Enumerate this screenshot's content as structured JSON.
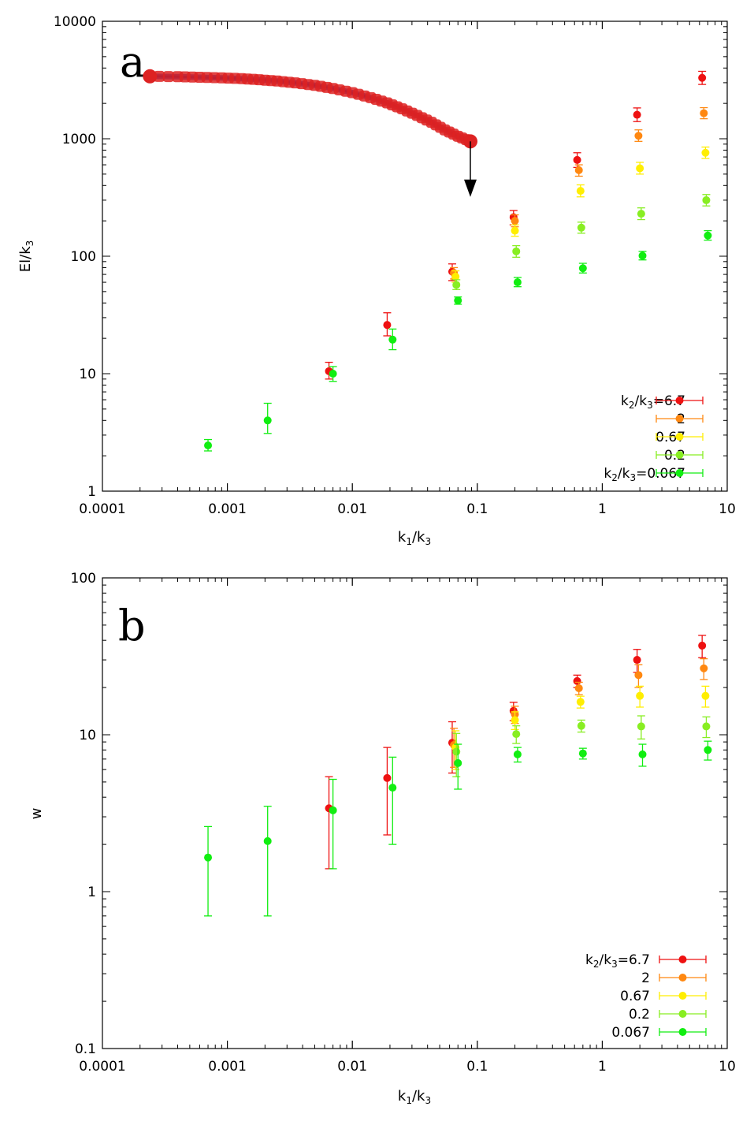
{
  "colors": {
    "k2_6.7": "#ee1111",
    "k2_2": "#ff8811",
    "k2_0.67": "#ffee00",
    "k2_0.2": "#88ee22",
    "k2_0.067": "#11ee11",
    "curve_dark": "#1a1a8a",
    "curve_mid": "#2255cc",
    "curve_marker": "#dd2222"
  },
  "chart_data": [
    {
      "panel": "a",
      "type": "scatter",
      "title": "",
      "xlabel": "k1/k3",
      "ylabel": "El/k3",
      "xscale": "log",
      "yscale": "log",
      "xlim": [
        0.0001,
        10
      ],
      "ylim": [
        1,
        10000
      ],
      "x_ticks": [
        {
          "value": 0.0001,
          "label": "0.0001"
        },
        {
          "value": 0.001,
          "label": "0.001"
        },
        {
          "value": 0.01,
          "label": "0.01"
        },
        {
          "value": 0.1,
          "label": "0.1"
        },
        {
          "value": 1,
          "label": "1"
        },
        {
          "value": 10,
          "label": "10"
        }
      ],
      "y_ticks": [
        {
          "value": 1,
          "label": "1"
        },
        {
          "value": 10,
          "label": "10"
        },
        {
          "value": 100,
          "label": "100"
        },
        {
          "value": 1000,
          "label": "1000"
        },
        {
          "value": 10000,
          "label": "10000"
        }
      ],
      "legend_placement": "bottom-right",
      "series": [
        {
          "name": "k2/k3=6.7",
          "legend_main": "k",
          "legend_sub1": "2",
          "legend_mid": "/k",
          "legend_sub2": "3",
          "legend_tail": "=6.7",
          "color_key": "k2_6.7",
          "points": [
            {
              "x": 0.0065,
              "y": 10.5,
              "lo": 9,
              "hi": 12.5
            },
            {
              "x": 0.019,
              "y": 26,
              "lo": 21,
              "hi": 33
            },
            {
              "x": 0.063,
              "y": 74,
              "lo": 62,
              "hi": 86
            },
            {
              "x": 0.195,
              "y": 215,
              "lo": 185,
              "hi": 245
            },
            {
              "x": 0.63,
              "y": 660,
              "lo": 570,
              "hi": 760
            },
            {
              "x": 1.9,
              "y": 1600,
              "lo": 1400,
              "hi": 1830
            },
            {
              "x": 6.3,
              "y": 3300,
              "lo": 2900,
              "hi": 3750
            }
          ]
        },
        {
          "name": "2",
          "legend_main": "2",
          "color_key": "k2_2",
          "points": [
            {
              "x": 0.065,
              "y": 72,
              "lo": 64,
              "hi": 80
            },
            {
              "x": 0.2,
              "y": 200,
              "lo": 178,
              "hi": 225
            },
            {
              "x": 0.65,
              "y": 540,
              "lo": 480,
              "hi": 600
            },
            {
              "x": 1.95,
              "y": 1060,
              "lo": 950,
              "hi": 1190
            },
            {
              "x": 6.5,
              "y": 1650,
              "lo": 1480,
              "hi": 1840
            }
          ]
        },
        {
          "name": "0.67",
          "legend_main": "0.67",
          "color_key": "k2_0.67",
          "points": [
            {
              "x": 0.067,
              "y": 67,
              "lo": 60,
              "hi": 75
            },
            {
              "x": 0.2,
              "y": 165,
              "lo": 148,
              "hi": 185
            },
            {
              "x": 0.67,
              "y": 360,
              "lo": 320,
              "hi": 405
            },
            {
              "x": 2.0,
              "y": 560,
              "lo": 500,
              "hi": 630
            },
            {
              "x": 6.7,
              "y": 760,
              "lo": 680,
              "hi": 850
            }
          ]
        },
        {
          "name": "0.2",
          "legend_main": "0.2",
          "color_key": "k2_0.2",
          "points": [
            {
              "x": 0.068,
              "y": 57,
              "lo": 52,
              "hi": 63
            },
            {
              "x": 0.205,
              "y": 110,
              "lo": 98,
              "hi": 123
            },
            {
              "x": 0.68,
              "y": 175,
              "lo": 157,
              "hi": 195
            },
            {
              "x": 2.05,
              "y": 230,
              "lo": 205,
              "hi": 258
            },
            {
              "x": 6.8,
              "y": 300,
              "lo": 268,
              "hi": 335
            }
          ]
        },
        {
          "name": "k2/k3=0.067",
          "legend_main": "k",
          "legend_sub1": "2",
          "legend_mid": "/k",
          "legend_sub2": "3",
          "legend_tail": "=0.067",
          "color_key": "k2_0.067",
          "points": [
            {
              "x": 0.0007,
              "y": 2.45,
              "lo": 2.2,
              "hi": 2.75
            },
            {
              "x": 0.0021,
              "y": 4.0,
              "lo": 3.1,
              "hi": 5.6
            },
            {
              "x": 0.007,
              "y": 10,
              "lo": 8.6,
              "hi": 11.5
            },
            {
              "x": 0.021,
              "y": 19.5,
              "lo": 16,
              "hi": 24
            },
            {
              "x": 0.07,
              "y": 42,
              "lo": 39,
              "hi": 45
            },
            {
              "x": 0.21,
              "y": 60,
              "lo": 55,
              "hi": 66
            },
            {
              "x": 0.7,
              "y": 79,
              "lo": 72,
              "hi": 87
            },
            {
              "x": 2.1,
              "y": 101,
              "lo": 93,
              "hi": 110
            },
            {
              "x": 7.0,
              "y": 150,
              "lo": 137,
              "hi": 165
            }
          ]
        }
      ],
      "curve": {
        "x": [
          0.00024,
          0.0004,
          0.0006,
          0.0009,
          0.0013,
          0.0018,
          0.0025,
          0.0035,
          0.005,
          0.007,
          0.01,
          0.014,
          0.019,
          0.025,
          0.033,
          0.043,
          0.055,
          0.07,
          0.088
        ],
        "y": [
          3400,
          3380,
          3340,
          3300,
          3250,
          3180,
          3100,
          2990,
          2850,
          2680,
          2470,
          2240,
          2020,
          1800,
          1580,
          1380,
          1190,
          1050,
          950
        ]
      },
      "arrow": {
        "x": 0.088,
        "y_from": 950,
        "y_to": 330
      }
    },
    {
      "panel": "b",
      "type": "scatter",
      "title": "",
      "xlabel": "k1/k3",
      "ylabel": "w",
      "xscale": "log",
      "yscale": "log",
      "xlim": [
        0.0001,
        10
      ],
      "ylim": [
        0.1,
        100
      ],
      "x_ticks": [
        {
          "value": 0.0001,
          "label": "0.0001"
        },
        {
          "value": 0.001,
          "label": "0.001"
        },
        {
          "value": 0.01,
          "label": "0.01"
        },
        {
          "value": 0.1,
          "label": "0.1"
        },
        {
          "value": 1,
          "label": "1"
        },
        {
          "value": 10,
          "label": "10"
        }
      ],
      "y_ticks": [
        {
          "value": 0.1,
          "label": "0.1"
        },
        {
          "value": 1,
          "label": "1"
        },
        {
          "value": 10,
          "label": "10"
        },
        {
          "value": 100,
          "label": "100"
        }
      ],
      "legend_placement": "bottom-right",
      "series": [
        {
          "name": "k2/k3=6.7",
          "legend_main": "k",
          "legend_sub1": "2",
          "legend_mid": "/k",
          "legend_sub2": "3",
          "legend_tail": "=6.7",
          "color_key": "k2_6.7",
          "points": [
            {
              "x": 0.0065,
              "y": 3.4,
              "lo": 1.4,
              "hi": 5.4
            },
            {
              "x": 0.019,
              "y": 5.3,
              "lo": 2.3,
              "hi": 8.3
            },
            {
              "x": 0.063,
              "y": 8.9,
              "lo": 5.7,
              "hi": 12.1
            },
            {
              "x": 0.195,
              "y": 14.2,
              "lo": 12.3,
              "hi": 16.1
            },
            {
              "x": 0.63,
              "y": 22,
              "lo": 20,
              "hi": 24
            },
            {
              "x": 1.9,
              "y": 30,
              "lo": 25,
              "hi": 35
            },
            {
              "x": 6.3,
              "y": 37,
              "lo": 31,
              "hi": 43
            }
          ]
        },
        {
          "name": "2",
          "legend_main": "2",
          "color_key": "k2_2",
          "points": [
            {
              "x": 0.065,
              "y": 8.6,
              "lo": 6.2,
              "hi": 11
            },
            {
              "x": 0.2,
              "y": 13.5,
              "lo": 11.8,
              "hi": 15.2
            },
            {
              "x": 0.65,
              "y": 19.8,
              "lo": 18,
              "hi": 21.6
            },
            {
              "x": 1.95,
              "y": 24,
              "lo": 20,
              "hi": 28
            },
            {
              "x": 6.5,
              "y": 26.5,
              "lo": 22.5,
              "hi": 30.5
            }
          ]
        },
        {
          "name": "0.67",
          "legend_main": "0.67",
          "color_key": "k2_0.67",
          "points": [
            {
              "x": 0.067,
              "y": 8.3,
              "lo": 6,
              "hi": 10.6
            },
            {
              "x": 0.2,
              "y": 12.4,
              "lo": 10.8,
              "hi": 14
            },
            {
              "x": 0.67,
              "y": 16.2,
              "lo": 14.8,
              "hi": 17.6
            },
            {
              "x": 2.0,
              "y": 17.7,
              "lo": 15,
              "hi": 20.4
            },
            {
              "x": 6.7,
              "y": 17.7,
              "lo": 15,
              "hi": 20.4
            }
          ]
        },
        {
          "name": "0.2",
          "legend_main": "0.2",
          "color_key": "k2_0.2",
          "points": [
            {
              "x": 0.068,
              "y": 7.8,
              "lo": 5.4,
              "hi": 10.2
            },
            {
              "x": 0.205,
              "y": 10.1,
              "lo": 8.8,
              "hi": 11.4
            },
            {
              "x": 0.68,
              "y": 11.4,
              "lo": 10.4,
              "hi": 12.4
            },
            {
              "x": 2.05,
              "y": 11.3,
              "lo": 9.4,
              "hi": 13.2
            },
            {
              "x": 6.8,
              "y": 11.3,
              "lo": 9.6,
              "hi": 13
            }
          ]
        },
        {
          "name": "0.067",
          "legend_main": "0.067",
          "color_key": "k2_0.067",
          "points": [
            {
              "x": 0.0007,
              "y": 1.65,
              "lo": 0.7,
              "hi": 2.6
            },
            {
              "x": 0.0021,
              "y": 2.1,
              "lo": 0.7,
              "hi": 3.5
            },
            {
              "x": 0.007,
              "y": 3.3,
              "lo": 1.4,
              "hi": 5.2
            },
            {
              "x": 0.021,
              "y": 4.6,
              "lo": 2.0,
              "hi": 7.2
            },
            {
              "x": 0.07,
              "y": 6.6,
              "lo": 4.5,
              "hi": 8.7
            },
            {
              "x": 0.21,
              "y": 7.5,
              "lo": 6.7,
              "hi": 8.3
            },
            {
              "x": 0.7,
              "y": 7.6,
              "lo": 7.0,
              "hi": 8.2
            },
            {
              "x": 2.1,
              "y": 7.5,
              "lo": 6.3,
              "hi": 8.7
            },
            {
              "x": 7.0,
              "y": 8.0,
              "lo": 6.9,
              "hi": 9.1
            }
          ]
        }
      ]
    }
  ]
}
